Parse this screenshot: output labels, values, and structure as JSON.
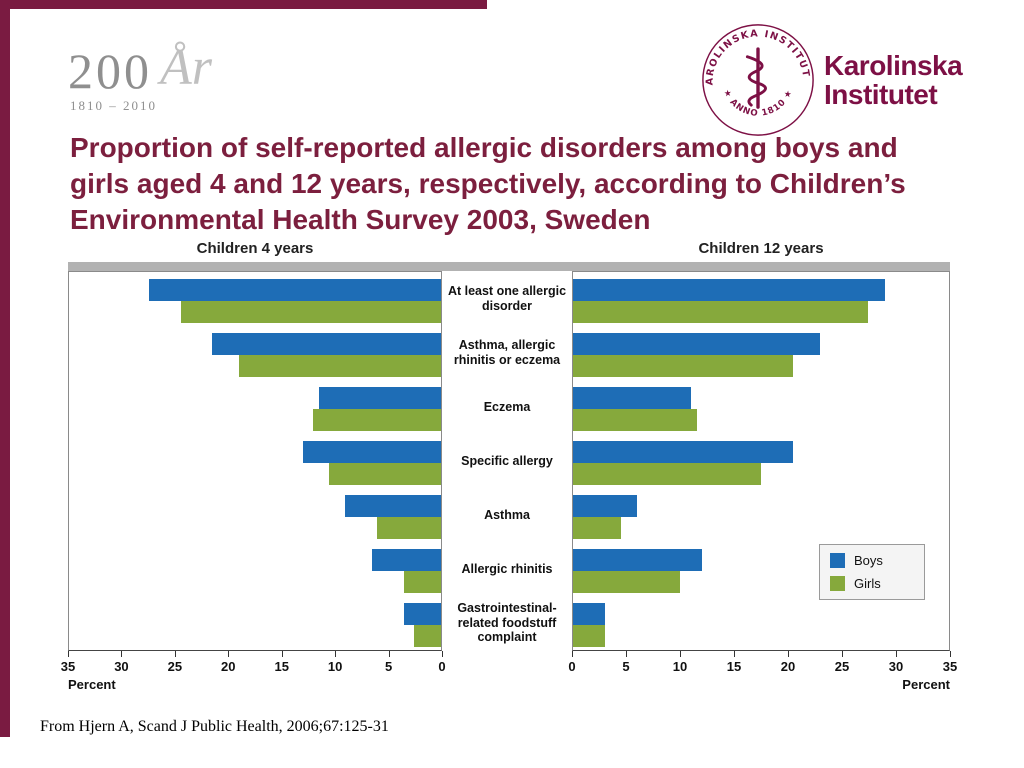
{
  "slide": {
    "accent_color": "#7a1b41",
    "background": "#ffffff"
  },
  "anniversary_logo": {
    "number": "200",
    "script_text": "År",
    "years": "1810 – 2010"
  },
  "ki_logo": {
    "seal_top_text": "KAROLINSKA INSTITUTET",
    "seal_bottom_text": "★ ANNO 1810 ★",
    "wordmark_line1": "Karolinska",
    "wordmark_line2": "Institutet",
    "brand_color": "#7d1045"
  },
  "title": "Proportion of self-reported allergic disorders among boys and girls aged 4 and 12 years, respectively, according to Children’s Environmental Health Survey 2003, Sweden",
  "chart_data": {
    "type": "bar",
    "layout": "mirrored-horizontal",
    "left_panel_title": "Children 4 years",
    "right_panel_title": "Children 12 years",
    "axis_label_left": "Percent",
    "axis_label_right": "Percent",
    "xlim": [
      0,
      35
    ],
    "ticks": [
      0,
      5,
      10,
      15,
      20,
      25,
      30,
      35
    ],
    "grid": false,
    "legend_position": "inside-right-panel",
    "bar_colors": {
      "boys": "#1e6db6",
      "girls": "#86a93c"
    },
    "legend": [
      {
        "label": "Boys",
        "color": "#1e6db6"
      },
      {
        "label": "Girls",
        "color": "#86a93c"
      }
    ],
    "categories": [
      "At least one allergic disorder",
      "Asthma, allergic rhinitis or eczema",
      "Eczema",
      "Specific allergy",
      "Asthma",
      "Allergic rhinitis",
      "Gastrointestinal-related foodstuff complaint"
    ],
    "series": [
      {
        "panel": "Children 4 years",
        "name": "Boys",
        "values": [
          27.5,
          21.5,
          11.5,
          13,
          9,
          6.5,
          3.5
        ]
      },
      {
        "panel": "Children 4 years",
        "name": "Girls",
        "values": [
          24.5,
          19,
          12,
          10.5,
          6,
          3.5,
          2.5
        ]
      },
      {
        "panel": "Children 12 years",
        "name": "Boys",
        "values": [
          29,
          23,
          11,
          20.5,
          6,
          12,
          3
        ]
      },
      {
        "panel": "Children 12 years",
        "name": "Girls",
        "values": [
          27.5,
          20.5,
          11.5,
          17.5,
          4.5,
          10,
          3
        ]
      }
    ]
  },
  "footer": {
    "citation": "From Hjern A, Scand J Public Health, 2006;67:125-31"
  }
}
